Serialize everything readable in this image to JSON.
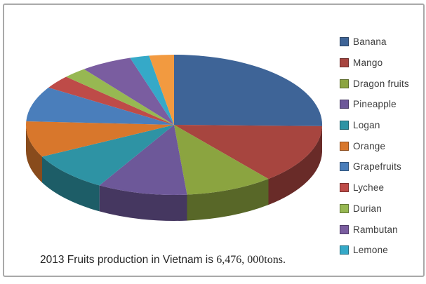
{
  "caption": {
    "prefix": "2013 Fruits production in Vietnam is ",
    "value": "6,476, 000tons."
  },
  "legend": {
    "position": "right",
    "items": [
      {
        "label": "Banana",
        "color": "#3E6497"
      },
      {
        "label": "Mango",
        "color": "#A7453F"
      },
      {
        "label": "Dragon fruits",
        "color": "#8BA440"
      },
      {
        "label": "Pineapple",
        "color": "#6D5899"
      },
      {
        "label": "Logan",
        "color": "#2E93A4"
      },
      {
        "label": "Orange",
        "color": "#D8772C"
      },
      {
        "label": "Grapefruits",
        "color": "#4A7EBB"
      },
      {
        "label": "Lychee",
        "color": "#BE4B48"
      },
      {
        "label": "Durian",
        "color": "#97B852"
      },
      {
        "label": "Rambutan",
        "color": "#7A5DA0"
      },
      {
        "label": "Lemone",
        "color": "#35A9C8"
      }
    ]
  },
  "chart_data": {
    "type": "pie",
    "is_3d": true,
    "title": "",
    "caption": "2013 Fruits production in Vietnam is 6,476, 000tons.",
    "total": "6,476,000 tons",
    "legend_position": "right",
    "start_angle_deg": 0,
    "direction": "clockwise",
    "note": "percent values estimated from slice angles; last slice has no legend entry (legend truncated)",
    "series": [
      {
        "label": "Banana",
        "percent": 25.3,
        "color": "#3E6497"
      },
      {
        "label": "Mango",
        "percent": 13.7,
        "color": "#A7453F"
      },
      {
        "label": "Dragon fruits",
        "percent": 9.6,
        "color": "#8BA440"
      },
      {
        "label": "Pineapple",
        "percent": 9.8,
        "color": "#6D5899"
      },
      {
        "label": "Logan",
        "percent": 9.1,
        "color": "#2E93A4"
      },
      {
        "label": "Orange",
        "percent": 8.3,
        "color": "#D8772C"
      },
      {
        "label": "Grapefruits",
        "percent": 8.1,
        "color": "#4A7EBB"
      },
      {
        "label": "Lychee",
        "percent": 3.1,
        "color": "#BE4B48"
      },
      {
        "label": "Durian",
        "percent": 2.6,
        "color": "#97B852"
      },
      {
        "label": "Rambutan",
        "percent": 5.6,
        "color": "#7A5DA0"
      },
      {
        "label": "Lemone",
        "percent": 2.1,
        "color": "#35A9C8"
      },
      {
        "label": "",
        "percent": 2.7,
        "color": "#F29A40"
      }
    ]
  }
}
